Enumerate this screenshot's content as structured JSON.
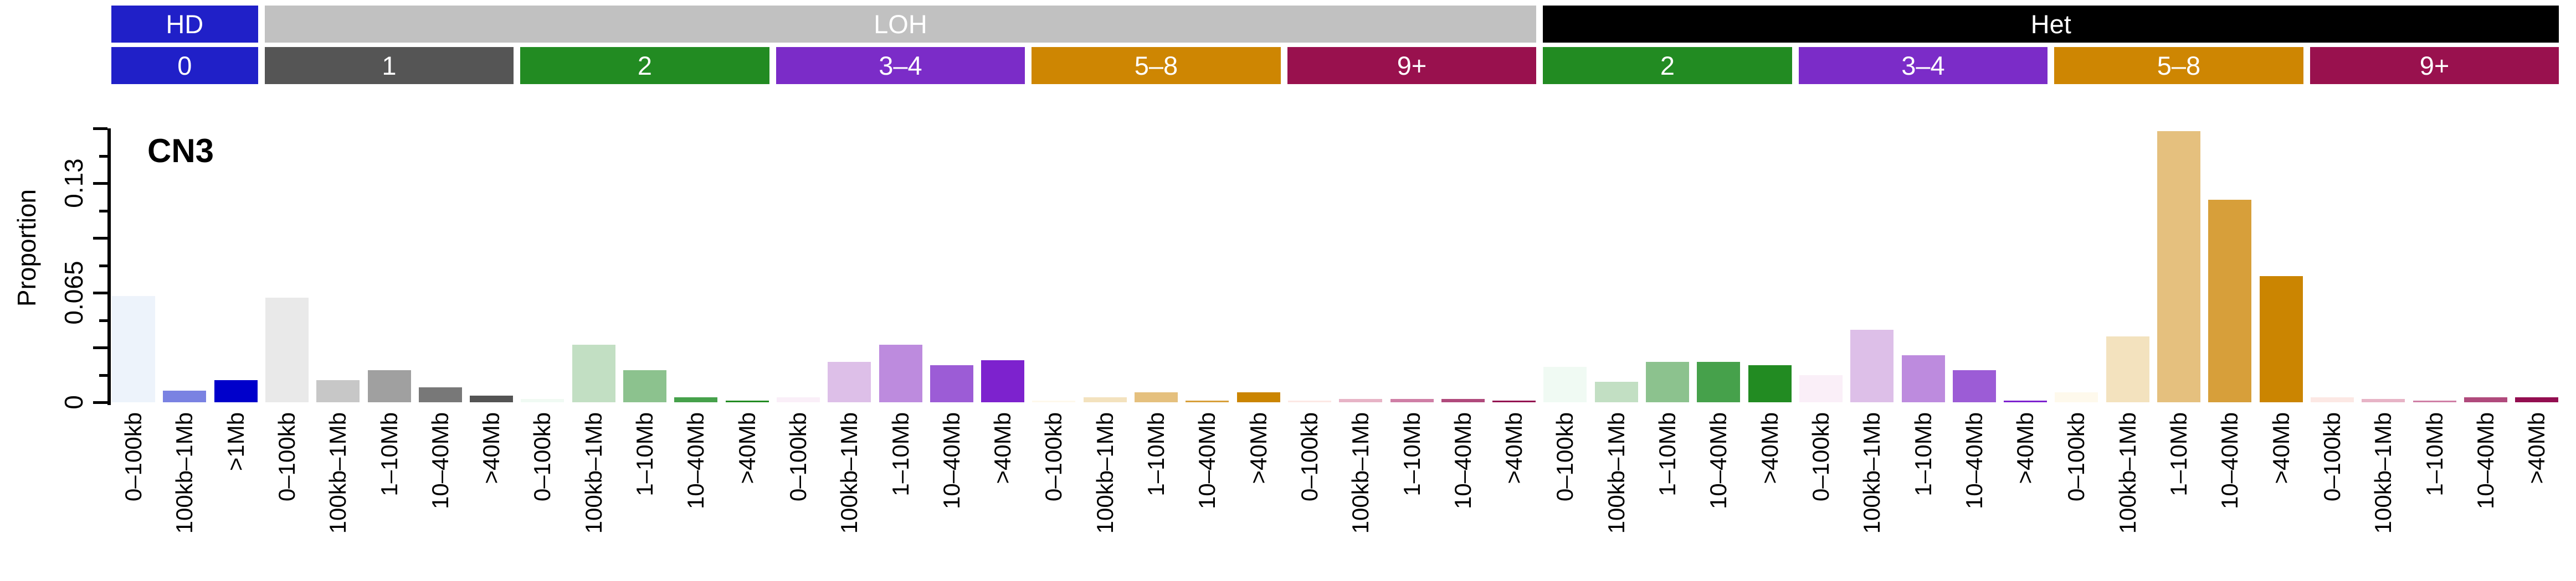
{
  "title": "CN3",
  "y_axis": {
    "label": "Proportion",
    "tick_labels": [
      "0",
      "0.065",
      "0.13"
    ],
    "tick_values": [
      0,
      0.065,
      0.13
    ],
    "minor_tick_step": 0.01625,
    "axis_max": 0.1625
  },
  "header": {
    "zygosity_bands": [
      {
        "label": "HD",
        "color": "#2020C8",
        "group_span": [
          0,
          0
        ]
      },
      {
        "label": "LOH",
        "color": "#C1C1C1",
        "group_span": [
          1,
          5
        ]
      },
      {
        "label": "Het",
        "color": "#000000",
        "group_span": [
          6,
          9
        ]
      }
    ],
    "cn_state_boxes": [
      {
        "label": "0",
        "color": "#2020C8"
      },
      {
        "label": "1",
        "color": "#555555"
      },
      {
        "label": "2",
        "color": "#228B22"
      },
      {
        "label": "3–4",
        "color": "#7B2CC8"
      },
      {
        "label": "5–8",
        "color": "#CE8602"
      },
      {
        "label": "9+",
        "color": "#99114E"
      },
      {
        "label": "2",
        "color": "#228B22"
      },
      {
        "label": "3–4",
        "color": "#7B2CC8"
      },
      {
        "label": "5–8",
        "color": "#CE8602"
      },
      {
        "label": "9+",
        "color": "#99114E"
      }
    ]
  },
  "chart_data": {
    "type": "bar",
    "title": "CN3",
    "ylabel": "Proportion",
    "ylim": [
      0,
      0.1625
    ],
    "grid": false,
    "legend": false,
    "groups": [
      {
        "zygosity": "HD",
        "cn_state": "0",
        "categories": [
          "0–100kb",
          "100kb–1Mb",
          ">1Mb"
        ],
        "values": [
          0.063,
          0.007,
          0.013
        ],
        "bar_colors": [
          "#EDF3FB",
          "#7A82E2",
          "#0000CB"
        ]
      },
      {
        "zygosity": "LOH",
        "cn_state": "1",
        "categories": [
          "0–100kb",
          "100kb–1Mb",
          "1–10Mb",
          "10–40Mb",
          ">40Mb"
        ],
        "values": [
          0.062,
          0.013,
          0.019,
          0.009,
          0.004
        ],
        "bar_colors": [
          "#E9E9E9",
          "#C7C7C7",
          "#A0A0A0",
          "#787878",
          "#545454"
        ]
      },
      {
        "zygosity": "LOH",
        "cn_state": "2",
        "categories": [
          "0–100kb",
          "100kb–1Mb",
          "1–10Mb",
          "10–40Mb",
          ">40Mb"
        ],
        "values": [
          0.002,
          0.034,
          0.019,
          0.003,
          0.001
        ],
        "bar_colors": [
          "#F0FAF3",
          "#C2DFC3",
          "#8CC28E",
          "#46A14B",
          "#228B22"
        ]
      },
      {
        "zygosity": "LOH",
        "cn_state": "3–4",
        "categories": [
          "0–100kb",
          "100kb–1Mb",
          "1–10Mb",
          "10–40Mb",
          ">40Mb"
        ],
        "values": [
          0.003,
          0.024,
          0.034,
          0.022,
          0.025
        ],
        "bar_colors": [
          "#FAEFF8",
          "#DDBFE8",
          "#BD8BDE",
          "#9C5CD6",
          "#7D22CE"
        ]
      },
      {
        "zygosity": "LOH",
        "cn_state": "5–8",
        "categories": [
          "0–100kb",
          "100kb–1Mb",
          "1–10Mb",
          "10–40Mb",
          ">40Mb"
        ],
        "values": [
          0.001,
          0.003,
          0.006,
          0.001,
          0.006
        ],
        "bar_colors": [
          "#FEF9EC",
          "#F3E2BE",
          "#E5C07E",
          "#D79F3A",
          "#CB8501"
        ]
      },
      {
        "zygosity": "LOH",
        "cn_state": "9+",
        "categories": [
          "0–100kb",
          "100kb–1Mb",
          "1–10Mb",
          "10–40Mb",
          ">40Mb"
        ],
        "values": [
          0.001,
          0.002,
          0.002,
          0.002,
          0.001
        ],
        "bar_colors": [
          "#FCE8E4",
          "#E7B4C6",
          "#CF7FA6",
          "#B04A7C",
          "#930E50"
        ]
      },
      {
        "zygosity": "Het",
        "cn_state": "2",
        "categories": [
          "0–100kb",
          "100kb–1Mb",
          "1–10Mb",
          "10–40Mb",
          ">40Mb"
        ],
        "values": [
          0.021,
          0.012,
          0.024,
          0.024,
          0.022
        ],
        "bar_colors": [
          "#F0FAF3",
          "#C2DFC3",
          "#8CC28E",
          "#46A14B",
          "#228B22"
        ]
      },
      {
        "zygosity": "Het",
        "cn_state": "3–4",
        "categories": [
          "0–100kb",
          "100kb–1Mb",
          "1–10Mb",
          "10–40Mb",
          ">40Mb"
        ],
        "values": [
          0.016,
          0.043,
          0.028,
          0.019,
          0.001
        ],
        "bar_colors": [
          "#FAEFF8",
          "#DDBFE8",
          "#BD8BDE",
          "#9C5CD6",
          "#7D22CE"
        ]
      },
      {
        "zygosity": "Het",
        "cn_state": "5–8",
        "categories": [
          "0–100kb",
          "100kb–1Mb",
          "1–10Mb",
          "10–40Mb",
          ">40Mb"
        ],
        "values": [
          0.006,
          0.039,
          0.161,
          0.12,
          0.075
        ],
        "bar_colors": [
          "#FEF9EC",
          "#F3E2BE",
          "#E5C07E",
          "#D79F3A",
          "#CB8501"
        ]
      },
      {
        "zygosity": "Het",
        "cn_state": "9+",
        "categories": [
          "0–100kb",
          "100kb–1Mb",
          "1–10Mb",
          "10–40Mb",
          ">40Mb"
        ],
        "values": [
          0.003,
          0.002,
          0.001,
          0.003,
          0.003
        ],
        "bar_colors": [
          "#FCE8E4",
          "#E7B4C6",
          "#CF7FA6",
          "#B04A7C",
          "#930E50"
        ]
      }
    ]
  }
}
